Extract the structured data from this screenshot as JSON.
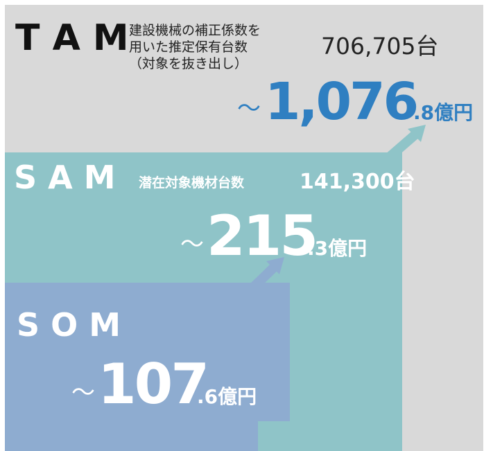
{
  "tam": {
    "label": "T A M",
    "description": [
      "建設機械の補正係数を",
      "用いた推定保有台数",
      "（対象を抜き出し）"
    ],
    "count": "706,705台",
    "amount": {
      "prefix": "～",
      "main": "1,076",
      "suffix": ".8億円"
    }
  },
  "sam": {
    "label": "S A M",
    "description": "潜在対象機材台数",
    "count": "141,300台",
    "amount": {
      "prefix": "～",
      "main": "215",
      "suffix": ".3億円"
    }
  },
  "som": {
    "label": "S O M",
    "amount": {
      "prefix": "～",
      "main": "107",
      "suffix": ".6億円"
    }
  }
}
